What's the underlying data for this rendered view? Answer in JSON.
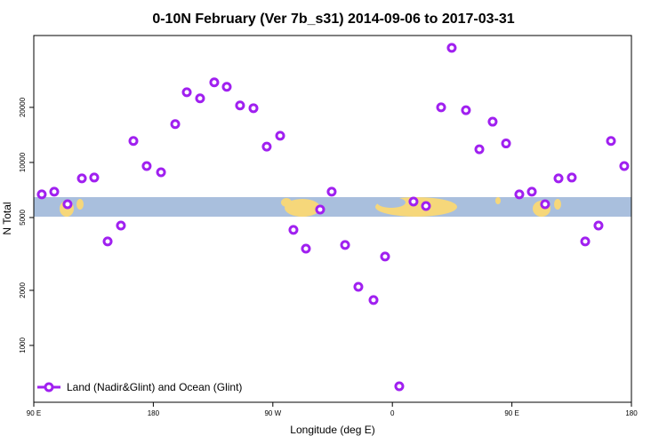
{
  "chart_data": {
    "type": "scatter",
    "title": "0-10N February (Ver 7b_s31)   2014-09-06 to 2017-03-31",
    "xlabel": "Longitude (deg E)",
    "ylabel": "N Total",
    "xlim": [
      90,
      540
    ],
    "xticks": [
      {
        "value": 90,
        "label": "90 E"
      },
      {
        "value": 180,
        "label": "180"
      },
      {
        "value": 270,
        "label": "90 W"
      },
      {
        "value": 360,
        "label": "0"
      },
      {
        "value": 450,
        "label": "90 E"
      },
      {
        "value": 540,
        "label": "180"
      }
    ],
    "ylim": [
      489,
      49400
    ],
    "yticks": [
      1000,
      2000,
      5000,
      10000,
      20000
    ],
    "log_y": true,
    "legend": "bottom left",
    "series": [
      {
        "name": "Land (Nadir&Glint) and Ocean (Glint)",
        "color": "#a020f0",
        "x": [
          96.0,
          105.4,
          115.4,
          126.2,
          135.5,
          145.6,
          155.6,
          165.0,
          175.0,
          185.8,
          196.5,
          205.2,
          215.2,
          225.9,
          235.3,
          245.3,
          255.4,
          265.4,
          275.5,
          285.5,
          294.9,
          305.6,
          314.3,
          324.4,
          334.4,
          345.8,
          354.5,
          365.2,
          375.9,
          385.3,
          396.7,
          404.7,
          415.4,
          425.5,
          435.5,
          445.6,
          455.6,
          465.0,
          475.0,
          485.1,
          495.1,
          505.2,
          515.2,
          524.6,
          534.6
        ],
        "values": [
          6690,
          6920,
          5910,
          8180,
          8270,
          3700,
          4520,
          13100,
          9560,
          8840,
          16200,
          24200,
          22400,
          27400,
          25900,
          20500,
          19800,
          12200,
          14000,
          4280,
          3380,
          5530,
          6920,
          3540,
          2090,
          1770,
          3060,
          598,
          6110,
          5780,
          20000,
          42300,
          19300,
          11800,
          16700,
          12700,
          6690,
          6920,
          5910,
          8180,
          8270,
          3700,
          4520,
          13100,
          9560
        ]
      }
    ]
  }
}
